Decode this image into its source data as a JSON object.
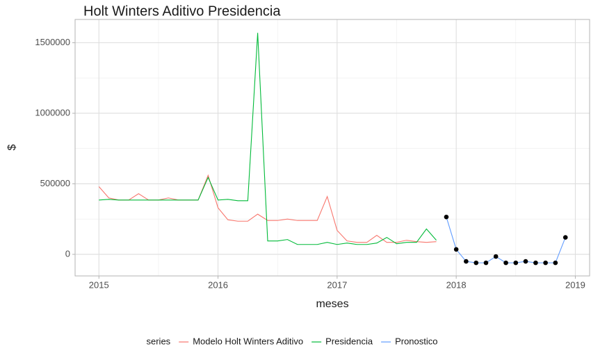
{
  "chart_data": {
    "type": "line",
    "title": "Holt Winters Aditivo Presidencia",
    "x_label": "meses",
    "y_label": "$",
    "legend_title": "series",
    "legend": "bottom",
    "grid": true,
    "xlim": [
      2014.8,
      2019.12
    ],
    "xticks": [
      2015,
      2016,
      2017,
      2018,
      2019
    ],
    "ylim": [
      -153000,
      1665000
    ],
    "yticks": [
      0,
      500000,
      1000000,
      1500000
    ],
    "series": [
      {
        "name": "Modelo Holt Winters Aditivo",
        "color": "#F8766D",
        "points": false,
        "x": [
          2015,
          2015.083,
          2015.167,
          2015.25,
          2015.333,
          2015.417,
          2015.5,
          2015.583,
          2015.667,
          2015.75,
          2015.833,
          2015.917,
          2016,
          2016.083,
          2016.167,
          2016.25,
          2016.333,
          2016.417,
          2016.5,
          2016.583,
          2016.667,
          2016.75,
          2016.833,
          2016.917,
          2017,
          2017.083,
          2017.167,
          2017.25,
          2017.333,
          2017.417,
          2017.5,
          2017.583,
          2017.667,
          2017.75,
          2017.833
        ],
        "values": [
          480000,
          400000,
          385000,
          385000,
          430000,
          385000,
          385000,
          400000,
          385000,
          385000,
          385000,
          560000,
          330000,
          245000,
          235000,
          235000,
          285000,
          240000,
          240000,
          250000,
          240000,
          240000,
          240000,
          410000,
          170000,
          95000,
          85000,
          85000,
          135000,
          85000,
          85000,
          100000,
          90000,
          85000,
          90000
        ]
      },
      {
        "name": "Presidencia",
        "color": "#00BA38",
        "points": false,
        "x": [
          2015,
          2015.083,
          2015.167,
          2015.25,
          2015.333,
          2015.417,
          2015.5,
          2015.583,
          2015.667,
          2015.75,
          2015.833,
          2015.917,
          2016,
          2016.083,
          2016.167,
          2016.25,
          2016.333,
          2016.417,
          2016.5,
          2016.583,
          2016.667,
          2016.75,
          2016.833,
          2016.917,
          2017,
          2017.083,
          2017.167,
          2017.25,
          2017.333,
          2017.417,
          2017.5,
          2017.583,
          2017.667,
          2017.75,
          2017.833
        ],
        "values": [
          385000,
          390000,
          385000,
          385000,
          385000,
          385000,
          385000,
          385000,
          385000,
          385000,
          385000,
          545000,
          385000,
          390000,
          380000,
          380000,
          1570000,
          95000,
          95000,
          105000,
          70000,
          70000,
          70000,
          85000,
          70000,
          80000,
          70000,
          70000,
          80000,
          120000,
          75000,
          85000,
          85000,
          180000,
          100000
        ]
      },
      {
        "name": "Pronostico",
        "color": "#619CFF",
        "points": true,
        "x": [
          2017.917,
          2018,
          2018.083,
          2018.167,
          2018.25,
          2018.333,
          2018.417,
          2018.5,
          2018.583,
          2018.667,
          2018.75,
          2018.833,
          2018.917
        ],
        "values": [
          265000,
          35000,
          -50000,
          -60000,
          -60000,
          -15000,
          -60000,
          -60000,
          -50000,
          -60000,
          -60000,
          -60000,
          120000
        ]
      }
    ]
  }
}
